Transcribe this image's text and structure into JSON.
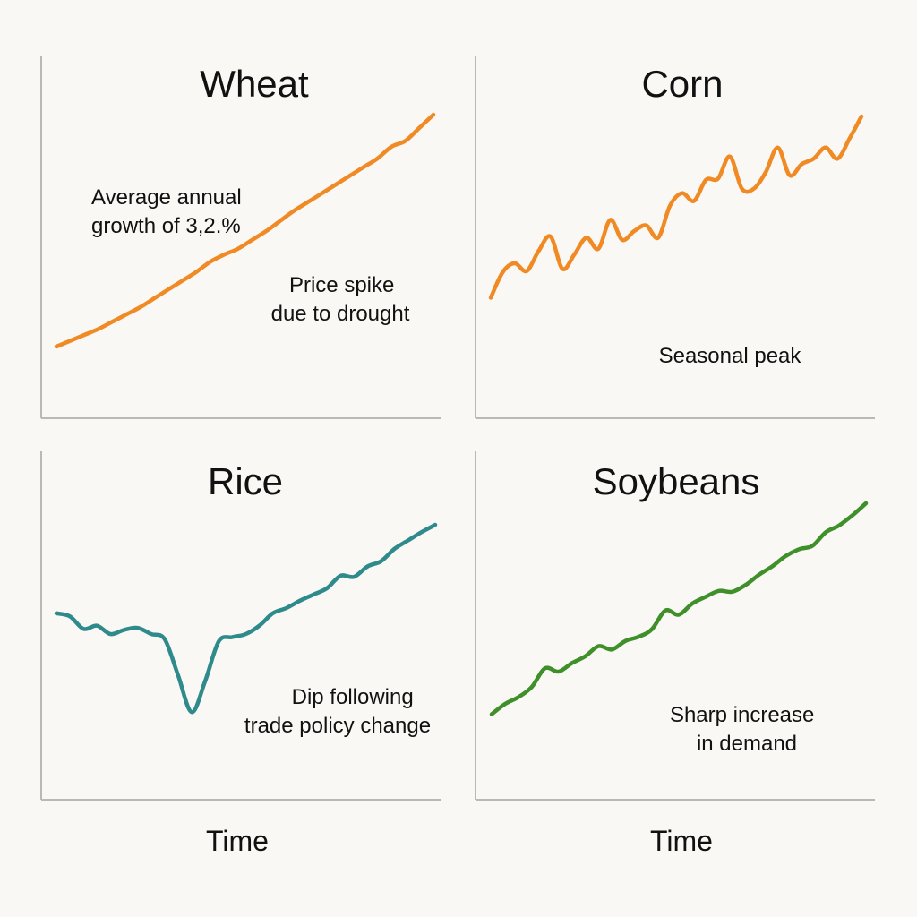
{
  "colors": {
    "background": "#f9f8f4",
    "axis": "#b9b9b6",
    "wheat": "#f08a24",
    "corn": "#f08a24",
    "rice": "#2f8a8c",
    "soybeans": "#3f8f2a"
  },
  "x_axis_label": "Time",
  "chart_data": [
    {
      "type": "line",
      "title": "Wheat",
      "xlabel": "",
      "ylabel": "",
      "grid": false,
      "x": [
        0,
        1,
        2,
        3,
        4,
        5,
        6,
        7,
        8,
        9,
        10,
        11,
        12,
        13,
        14,
        15,
        16,
        17,
        18,
        19,
        20,
        21,
        22,
        23,
        24,
        25,
        26,
        27
      ],
      "series": [
        {
          "color": "#f08a24",
          "values": [
            8,
            12,
            16,
            20,
            25,
            30,
            35,
            41,
            47,
            53,
            59,
            66,
            71,
            75,
            81,
            87,
            94,
            101,
            107,
            113,
            119,
            125,
            131,
            137,
            145,
            149,
            158,
            167
          ]
        }
      ],
      "annotations": [
        {
          "text_lines": [
            "Average annual",
            "growth of 3,2.%"
          ]
        },
        {
          "text_lines": [
            "Price spike",
            "due to drought"
          ]
        }
      ]
    },
    {
      "type": "line",
      "title": "Corn",
      "xlabel": "",
      "ylabel": "",
      "grid": false,
      "x": [
        0,
        1,
        2,
        3,
        4,
        5,
        6,
        7,
        8,
        9,
        10,
        11,
        12,
        13,
        14,
        15,
        16,
        17,
        18,
        19,
        20,
        21,
        22,
        23,
        24,
        25,
        26,
        27,
        28,
        29,
        30,
        31
      ],
      "series": [
        {
          "color": "#f08a24",
          "values": [
            27,
            50,
            58,
            51,
            69,
            82,
            53,
            66,
            81,
            71,
            97,
            79,
            87,
            92,
            81,
            110,
            121,
            114,
            133,
            134,
            154,
            125,
            125,
            140,
            162,
            137,
            147,
            152,
            162,
            152,
            170,
            190
          ]
        }
      ],
      "annotations": [
        {
          "text_lines": [
            "Seasonal peak"
          ]
        }
      ]
    },
    {
      "type": "line",
      "title": "Rice",
      "xlabel": "",
      "ylabel": "",
      "grid": false,
      "x": [
        0,
        1,
        2,
        3,
        4,
        5,
        6,
        7,
        8,
        9,
        10,
        11,
        12,
        13,
        14,
        15,
        16,
        17,
        18,
        19,
        20,
        21,
        22,
        23,
        24,
        25,
        26,
        27,
        28
      ],
      "series": [
        {
          "color": "#2f8a8c",
          "values": [
            100,
            97,
            85,
            88,
            80,
            84,
            86,
            80,
            75,
            40,
            5,
            35,
            73,
            77,
            80,
            88,
            100,
            105,
            112,
            118,
            124,
            136,
            135,
            145,
            150,
            162,
            170,
            178,
            185
          ]
        }
      ],
      "annotations": [
        {
          "text_lines": [
            "Dip following",
            "trade policy change"
          ]
        }
      ]
    },
    {
      "type": "line",
      "title": "Soybeans",
      "xlabel": "",
      "ylabel": "",
      "grid": false,
      "x": [
        0,
        1,
        2,
        3,
        4,
        5,
        6,
        7,
        8,
        9,
        10,
        11,
        12,
        13,
        14,
        15,
        16,
        17,
        18,
        19,
        20,
        21,
        22,
        23,
        24,
        25,
        26,
        27,
        28
      ],
      "series": [
        {
          "color": "#3f8f2a",
          "values": [
            30,
            42,
            50,
            62,
            84,
            80,
            90,
            98,
            110,
            106,
            116,
            121,
            130,
            152,
            147,
            160,
            168,
            175,
            174,
            182,
            194,
            204,
            216,
            224,
            228,
            244,
            252,
            264,
            278
          ]
        }
      ],
      "annotations": [
        {
          "text_lines": [
            "Sharp increase",
            "in demand"
          ]
        }
      ]
    }
  ]
}
